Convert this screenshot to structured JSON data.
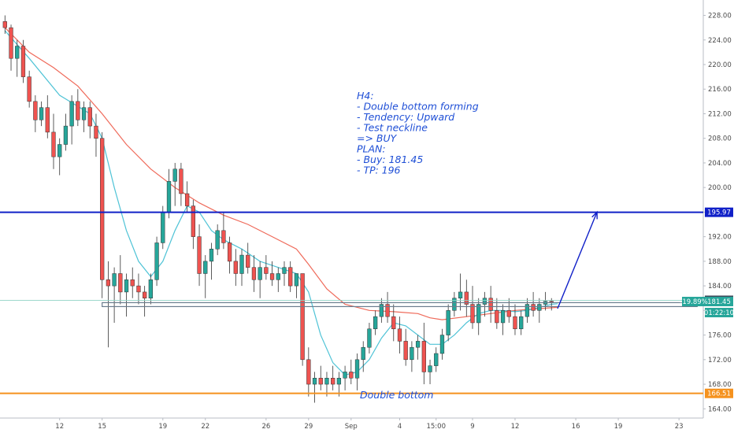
{
  "chart_data": {
    "type": "candlestick",
    "y_ticks": [
      164,
      168,
      172,
      176,
      180,
      184,
      188,
      192,
      196,
      200,
      204,
      208,
      212,
      216,
      220,
      224,
      228
    ],
    "ylim": [
      162.5,
      230.5
    ],
    "x_ticks": [
      {
        "label": "12",
        "t": 9
      },
      {
        "label": "15",
        "t": 16
      },
      {
        "label": "19",
        "t": 26
      },
      {
        "label": "22",
        "t": 33
      },
      {
        "label": "26",
        "t": 43
      },
      {
        "label": "29",
        "t": 50
      },
      {
        "label": "Sep",
        "t": 57
      },
      {
        "label": "4",
        "t": 65
      },
      {
        "label": "15:00",
        "t": 71
      },
      {
        "label": "9",
        "t": 77
      },
      {
        "label": "12",
        "t": 84
      },
      {
        "label": "16",
        "t": 94
      },
      {
        "label": "19",
        "t": 101
      },
      {
        "label": "23",
        "t": 111
      }
    ],
    "xlim": [
      -0.3,
      115
    ],
    "candles": [
      [
        227,
        228,
        225,
        226
      ],
      [
        226,
        226.5,
        219,
        221
      ],
      [
        221,
        224,
        218,
        223
      ],
      [
        223,
        224,
        217,
        218
      ],
      [
        218,
        219,
        213,
        214
      ],
      [
        214,
        215,
        209,
        211
      ],
      [
        211,
        214,
        210,
        213
      ],
      [
        213,
        215,
        208,
        209
      ],
      [
        209,
        212,
        203,
        205
      ],
      [
        205,
        208,
        202,
        207
      ],
      [
        207,
        212,
        206,
        210
      ],
      [
        210,
        215,
        207,
        214
      ],
      [
        214,
        216,
        210,
        211
      ],
      [
        211,
        214,
        209,
        213
      ],
      [
        213,
        214,
        208,
        210
      ],
      [
        210,
        212,
        205,
        208
      ],
      [
        208,
        209,
        182,
        185
      ],
      [
        185,
        188,
        174,
        184
      ],
      [
        184,
        187,
        178,
        186
      ],
      [
        186,
        189,
        181,
        183
      ],
      [
        183,
        186,
        179,
        185
      ],
      [
        185,
        187,
        182,
        184
      ],
      [
        184,
        186,
        181,
        183
      ],
      [
        183,
        184,
        179,
        182
      ],
      [
        182,
        186,
        181,
        185
      ],
      [
        185,
        192,
        184,
        191
      ],
      [
        191,
        197,
        190,
        196
      ],
      [
        196,
        203,
        195,
        201
      ],
      [
        201,
        204,
        197,
        203
      ],
      [
        203,
        204,
        197,
        199
      ],
      [
        199,
        201,
        196,
        197
      ],
      [
        197,
        198,
        190,
        192
      ],
      [
        192,
        194,
        184,
        186
      ],
      [
        186,
        189,
        182,
        188
      ],
      [
        188,
        191,
        185,
        190
      ],
      [
        190,
        194,
        189,
        193
      ],
      [
        193,
        196,
        190,
        191
      ],
      [
        191,
        192,
        186,
        188
      ],
      [
        188,
        190,
        184,
        186
      ],
      [
        186,
        190,
        184,
        189
      ],
      [
        189,
        191,
        186,
        187
      ],
      [
        187,
        189,
        183,
        185
      ],
      [
        185,
        188,
        182,
        187
      ],
      [
        187,
        189,
        185,
        186
      ],
      [
        186,
        188,
        184,
        185
      ],
      [
        185,
        187,
        183,
        186
      ],
      [
        186,
        188,
        184,
        187
      ],
      [
        187,
        188,
        183,
        184
      ],
      [
        184,
        186,
        182,
        186
      ],
      [
        186,
        186,
        171,
        172
      ],
      [
        172,
        174,
        166,
        168
      ],
      [
        168,
        170,
        165,
        169
      ],
      [
        169,
        171,
        167,
        168
      ],
      [
        168,
        170,
        166,
        169
      ],
      [
        169,
        171,
        167,
        168
      ],
      [
        168,
        170,
        166,
        169
      ],
      [
        169,
        171,
        167,
        170
      ],
      [
        170,
        172,
        168,
        169
      ],
      [
        169,
        173,
        167,
        172
      ],
      [
        172,
        175,
        170,
        174
      ],
      [
        174,
        178,
        173,
        177
      ],
      [
        177,
        180,
        176,
        179
      ],
      [
        179,
        182,
        178,
        181
      ],
      [
        181,
        183,
        178,
        179
      ],
      [
        179,
        181,
        175,
        177
      ],
      [
        177,
        179,
        173,
        175
      ],
      [
        175,
        177,
        171,
        172
      ],
      [
        172,
        175,
        170,
        174
      ],
      [
        174,
        176,
        172,
        175
      ],
      [
        175,
        178,
        168,
        170
      ],
      [
        170,
        172,
        168,
        171
      ],
      [
        171,
        174,
        170,
        173
      ],
      [
        173,
        177,
        172,
        176
      ],
      [
        176,
        181,
        175,
        180
      ],
      [
        180,
        183,
        179,
        182
      ],
      [
        182,
        186,
        180,
        183
      ],
      [
        183,
        185,
        179,
        181
      ],
      [
        181,
        184,
        177,
        178
      ],
      [
        178,
        182,
        176,
        181
      ],
      [
        181,
        183,
        179,
        182
      ],
      [
        182,
        184,
        178,
        180
      ],
      [
        180,
        182,
        177,
        178
      ],
      [
        178,
        181,
        176,
        180
      ],
      [
        180,
        182,
        178,
        179
      ],
      [
        179,
        181,
        176,
        177
      ],
      [
        177,
        180,
        176,
        179
      ],
      [
        179,
        182,
        178,
        181
      ],
      [
        181,
        183,
        179,
        180
      ],
      [
        180,
        182,
        178,
        181
      ],
      [
        181,
        183,
        180,
        181.5
      ],
      [
        181.5,
        182,
        180,
        181.45
      ]
    ],
    "ma_fast": [
      [
        0,
        225.5
      ],
      [
        4,
        221
      ],
      [
        9,
        215
      ],
      [
        14,
        212
      ],
      [
        16,
        208
      ],
      [
        18,
        200
      ],
      [
        20,
        193
      ],
      [
        22,
        188
      ],
      [
        24,
        185.5
      ],
      [
        26,
        188
      ],
      [
        28,
        193
      ],
      [
        30,
        197
      ],
      [
        32,
        196
      ],
      [
        34,
        193
      ],
      [
        36,
        191.5
      ],
      [
        39,
        190
      ],
      [
        42,
        188
      ],
      [
        45,
        187
      ],
      [
        48,
        186
      ],
      [
        50,
        183
      ],
      [
        52,
        176
      ],
      [
        54,
        171.5
      ],
      [
        56,
        169.5
      ],
      [
        58,
        170
      ],
      [
        60,
        172
      ],
      [
        62,
        175.5
      ],
      [
        64,
        178
      ],
      [
        66,
        177.5
      ],
      [
        68,
        176
      ],
      [
        70,
        174.5
      ],
      [
        72,
        174.5
      ],
      [
        74,
        176
      ],
      [
        76,
        178
      ],
      [
        78,
        179.5
      ],
      [
        80,
        180
      ],
      [
        82,
        180
      ],
      [
        84,
        179.8
      ],
      [
        86,
        180
      ],
      [
        88,
        180.5
      ],
      [
        90,
        181
      ],
      [
        91,
        181.1
      ]
    ],
    "ma_slow": [
      [
        0,
        226
      ],
      [
        4,
        222
      ],
      [
        8,
        219.5
      ],
      [
        12,
        216.5
      ],
      [
        16,
        212
      ],
      [
        20,
        207
      ],
      [
        24,
        203
      ],
      [
        28,
        200
      ],
      [
        32,
        197.5
      ],
      [
        36,
        195.5
      ],
      [
        40,
        194
      ],
      [
        44,
        192
      ],
      [
        48,
        190
      ],
      [
        50,
        187.5
      ],
      [
        53,
        183.5
      ],
      [
        56,
        181
      ],
      [
        60,
        180
      ],
      [
        64,
        179.8
      ],
      [
        68,
        179.5
      ],
      [
        70,
        178.8
      ],
      [
        72,
        178.5
      ],
      [
        76,
        179
      ],
      [
        80,
        179.5
      ],
      [
        84,
        180
      ],
      [
        88,
        180.3
      ],
      [
        91,
        180.5
      ]
    ],
    "levels": {
      "resistance": 195.97,
      "support": 166.51,
      "neckline": 180.95,
      "last_price": 181.45,
      "prev_close": 181.65
    },
    "target_arrow": {
      "from": [
        91,
        180.3
      ],
      "to": [
        97.5,
        196.0
      ]
    },
    "price_labels": {
      "resistance": "195.97",
      "prev_close": "181.65",
      "change": "-19.89%",
      "last_price": "181.45",
      "countdown": "01:22:10",
      "support": "166.51"
    },
    "annotations": {
      "note_lines": [
        "H4:",
        "- Double bottom forming",
        "- Tendency: Upward",
        "- Test neckline",
        "=> BUY",
        "PLAN:",
        "- Buy: 181.45",
        "- TP: 196"
      ],
      "double_bottom_label": "Double bottom"
    },
    "colors": {
      "up": "#26a69a",
      "down": "#ef5350",
      "ma_fast": "#4fc3d6",
      "ma_slow": "#ef6a5a",
      "resistance": "#1020c8",
      "support": "#f5921e",
      "note_text": "#1f4fd6",
      "badge_green": "#26a69a",
      "badge_dark": "#3d4a5c"
    }
  }
}
